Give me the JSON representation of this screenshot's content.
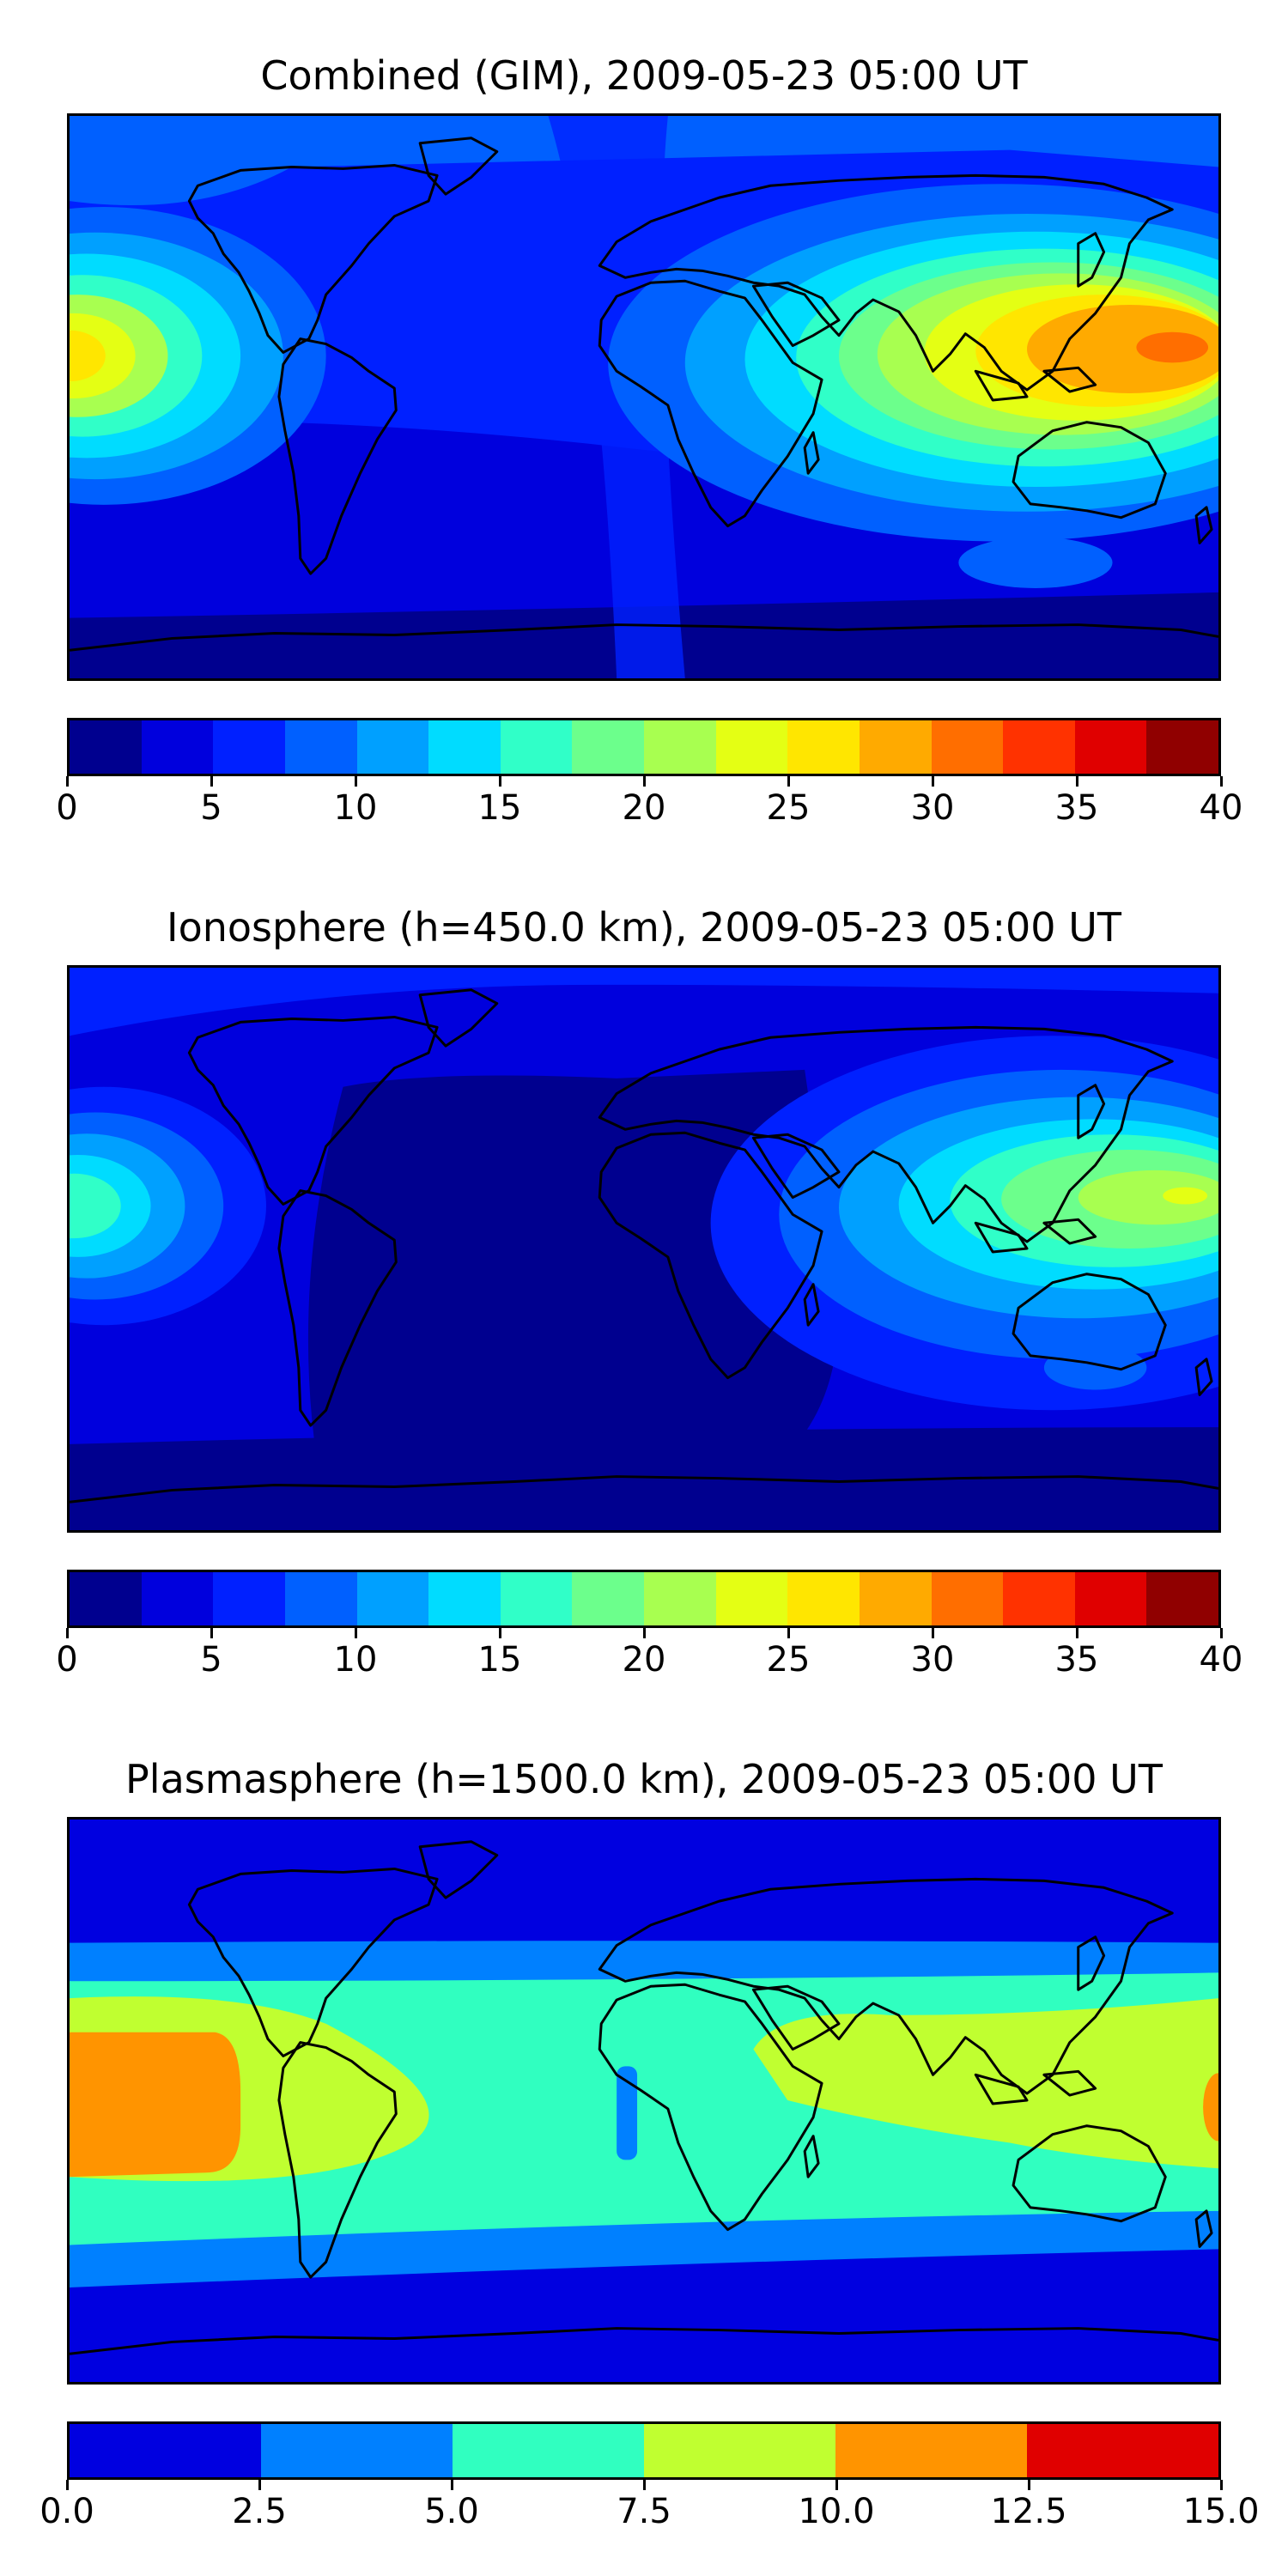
{
  "panels": [
    {
      "id": "combined",
      "title": "Combined (GIM), 2009-05-23 05:00 UT",
      "colorbar": {
        "ticks": [
          "0",
          "5",
          "10",
          "15",
          "20",
          "25",
          "30",
          "35",
          "40"
        ],
        "colors": [
          "#00008f",
          "#0000dd",
          "#0020ff",
          "#0060ff",
          "#00a0ff",
          "#00dcff",
          "#30ffc8",
          "#6cff8c",
          "#a8ff50",
          "#e4ff14",
          "#ffe600",
          "#ffaa00",
          "#ff6e00",
          "#ff3200",
          "#e00000",
          "#900000"
        ]
      }
    },
    {
      "id": "ionosphere",
      "title": "Ionosphere  (h=450.0 km), 2009-05-23 05:00 UT",
      "colorbar": {
        "ticks": [
          "0",
          "5",
          "10",
          "15",
          "20",
          "25",
          "30",
          "35",
          "40"
        ],
        "colors": [
          "#00008f",
          "#0000dd",
          "#0020ff",
          "#0060ff",
          "#00a0ff",
          "#00dcff",
          "#30ffc8",
          "#6cff8c",
          "#a8ff50",
          "#e4ff14",
          "#ffe600",
          "#ffaa00",
          "#ff6e00",
          "#ff3200",
          "#e00000",
          "#900000"
        ]
      }
    },
    {
      "id": "plasmasphere",
      "title": "Plasmasphere (h=1500.0 km), 2009-05-23 05:00 UT",
      "colorbar": {
        "ticks": [
          "0.0",
          "2.5",
          "5.0",
          "7.5",
          "10.0",
          "12.5",
          "15.0"
        ],
        "colors": [
          "#0000e0",
          "#0080ff",
          "#30ffc0",
          "#c0ff30",
          "#ff9400",
          "#e00000"
        ]
      }
    }
  ]
}
